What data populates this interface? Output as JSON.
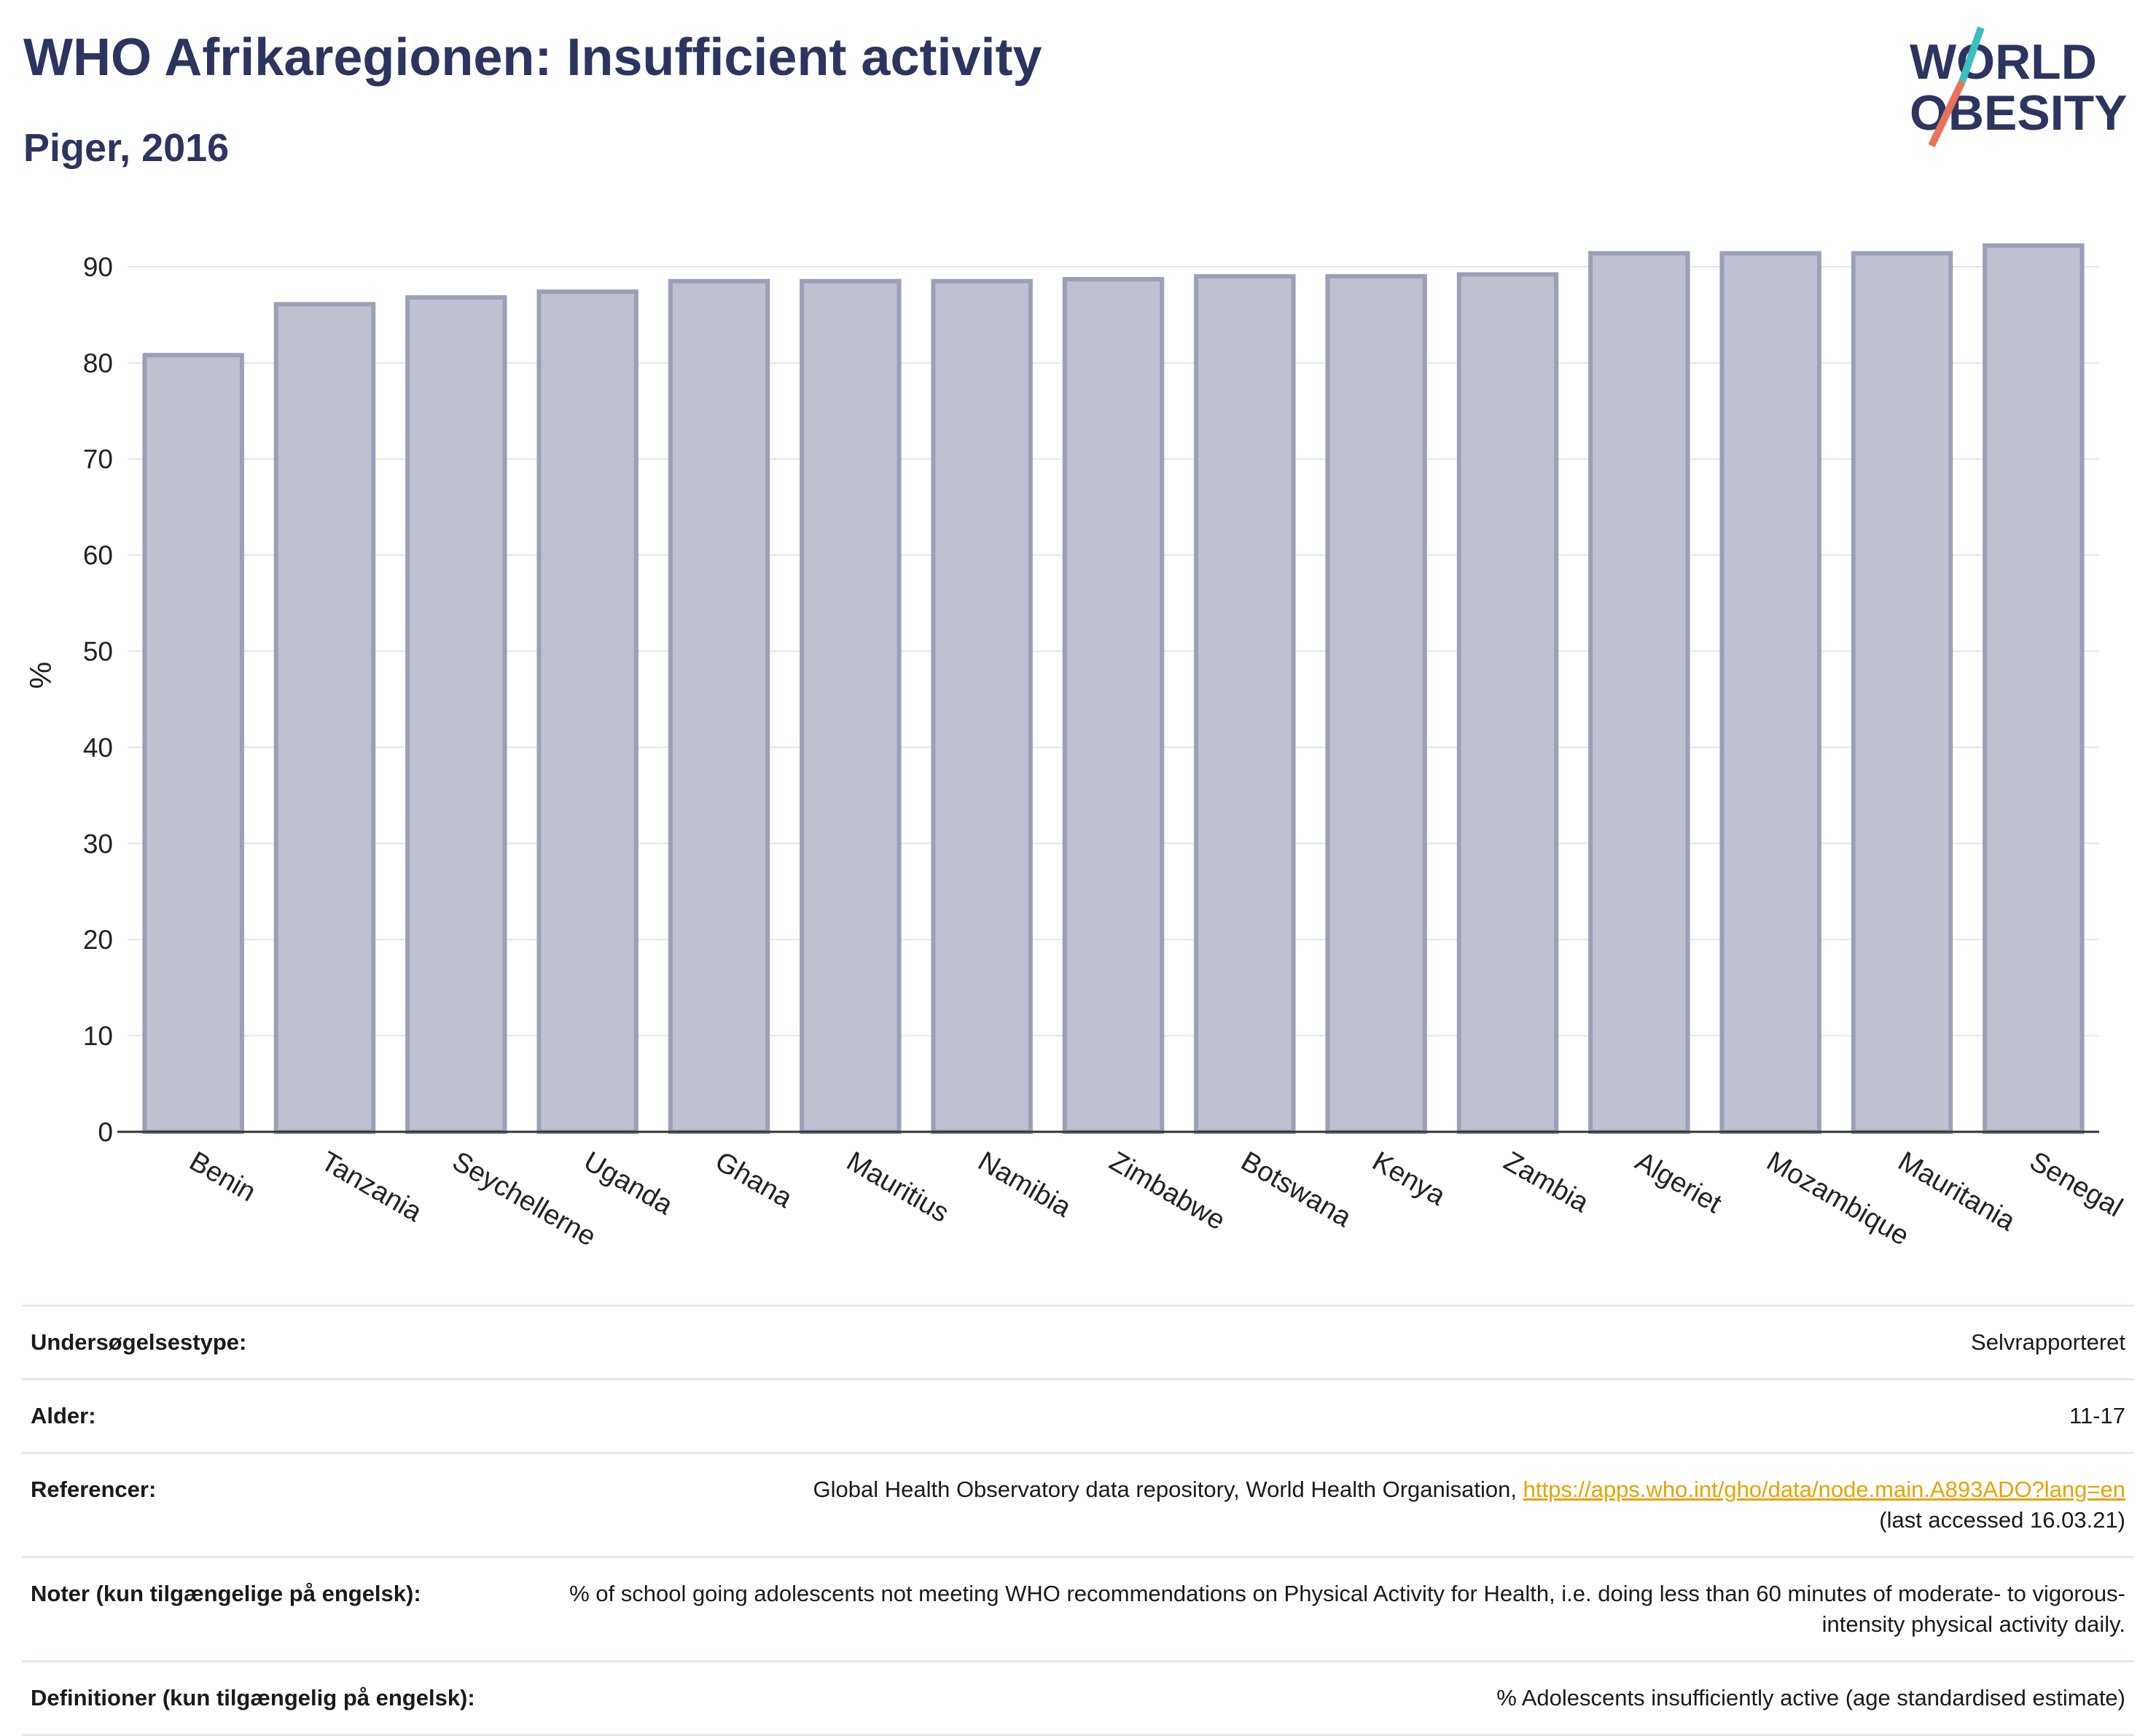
{
  "header": {
    "title": "WHO Afrikaregionen: Insufficient activity",
    "subtitle": "Piger, 2016",
    "logo_line1": "WORLD",
    "logo_line2": "OBESITY"
  },
  "chart_data": {
    "type": "bar",
    "title": "WHO Afrikaregionen: Insufficient activity",
    "subtitle": "Piger, 2016",
    "xlabel": "",
    "ylabel": "%",
    "ylim": [
      0,
      95
    ],
    "yticks": [
      0,
      10,
      20,
      30,
      40,
      50,
      60,
      70,
      80,
      90
    ],
    "grid": true,
    "categories": [
      "Benin",
      "Tanzania",
      "Seychellerne",
      "Uganda",
      "Ghana",
      "Mauritius",
      "Namibia",
      "Zimbabwe",
      "Botswana",
      "Kenya",
      "Zambia",
      "Algeriet",
      "Mozambique",
      "Mauritania",
      "Senegal"
    ],
    "values": [
      80.8,
      86.1,
      86.8,
      87.4,
      88.5,
      88.5,
      88.5,
      88.7,
      89.0,
      89.0,
      89.2,
      91.4,
      91.4,
      91.4,
      92.2
    ],
    "bar_fill": "#bec1cf",
    "bar_stroke": "#9aa0b8"
  },
  "meta": {
    "rows": [
      {
        "label": "Undersøgelsestype:",
        "value": "Selvrapporteret"
      },
      {
        "label": "Alder:",
        "value": "11-17"
      },
      {
        "label": "Referencer:",
        "value": "Global Health Observatory data repository, World Health Organisation,",
        "link": "https://apps.who.int/gho/data/node.main.A893ADO?lang=en",
        "extra": "(last accessed 16.03.21)"
      },
      {
        "label": "Noter (kun tilgængelige på engelsk):",
        "value": "% of school going adolescents not meeting WHO recommendations on Physical Activity for Health, i.e. doing less than 60 minutes of moderate- to vigorous-intensity physical activity daily."
      },
      {
        "label": "Definitioner (kun tilgængelig på engelsk):",
        "value": "% Adolescents insufficiently active (age standardised estimate)"
      }
    ]
  },
  "colors": {
    "title": "#2b3560",
    "accent_teal": "#3dbfbf",
    "accent_coral": "#e8735a",
    "link": "#e8a200"
  }
}
